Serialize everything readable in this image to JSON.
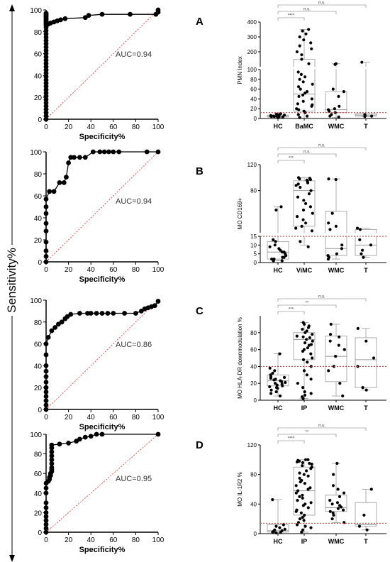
{
  "figure": {
    "y_axis_common_label": "Sensitivity%",
    "accent_colors": {
      "curve": "#000000",
      "reference": "#e05050",
      "cutoff": "#c0392b",
      "box": "#999999"
    }
  },
  "chart_data": [
    {
      "panel": "A",
      "type": "line",
      "title": "",
      "xlabel": "Specificity%",
      "ylabel": "",
      "xlim": [
        0,
        100
      ],
      "ylim": [
        0,
        100
      ],
      "xticks": [
        0,
        20,
        40,
        60,
        80,
        100
      ],
      "yticks": [
        0,
        20,
        40,
        60,
        80,
        100
      ],
      "annotation": "AUC=0.94",
      "diagonal_reference": true,
      "series": [
        {
          "x": [
            0,
            0,
            0,
            0,
            0,
            0,
            0,
            0,
            0,
            0,
            0,
            0,
            0,
            0,
            0,
            0,
            0,
            0,
            0,
            0,
            0,
            0,
            0,
            0,
            0,
            0,
            0,
            0,
            0,
            0,
            0,
            0,
            0,
            0,
            0,
            0,
            0,
            0,
            0,
            0,
            0,
            2,
            4,
            7,
            10,
            13,
            17,
            35,
            38,
            50,
            75,
            98,
            100,
            100
          ],
          "y": [
            0,
            3,
            6,
            9,
            12,
            15,
            18,
            21,
            24,
            27,
            30,
            33,
            36,
            39,
            42,
            45,
            48,
            51,
            54,
            57,
            60,
            63,
            66,
            69,
            72,
            75,
            78,
            81,
            84,
            86,
            87,
            88,
            89,
            90,
            91,
            92,
            93,
            94,
            95,
            96,
            97,
            87,
            88,
            89,
            90,
            91,
            92,
            93,
            95,
            96,
            96,
            96,
            98,
            100
          ]
        }
      ]
    },
    {
      "panel": "B",
      "type": "line",
      "title": "",
      "xlabel": "Specificity%",
      "ylabel": "",
      "xlim": [
        0,
        100
      ],
      "ylim": [
        0,
        100
      ],
      "xticks": [
        0,
        20,
        40,
        60,
        80,
        100
      ],
      "yticks": [
        0,
        20,
        40,
        60,
        80,
        100
      ],
      "annotation": "AUC=0.94",
      "diagonal_reference": true,
      "series": [
        {
          "x": [
            0,
            0,
            0,
            0,
            0,
            0,
            0,
            0,
            0,
            3,
            7,
            12,
            16,
            18,
            20,
            22,
            25,
            30,
            35,
            42,
            48,
            52,
            56,
            60,
            65,
            90,
            100
          ],
          "y": [
            0,
            5,
            10,
            18,
            28,
            35,
            44,
            50,
            57,
            64,
            64,
            72,
            72,
            77,
            90,
            95,
            95,
            95,
            95,
            100,
            100,
            100,
            100,
            100,
            100,
            100,
            100
          ]
        }
      ]
    },
    {
      "panel": "C",
      "type": "line",
      "title": "",
      "xlabel": "Specificity%",
      "ylabel": "",
      "xlim": [
        0,
        100
      ],
      "ylim": [
        0,
        100
      ],
      "xticks": [
        0,
        20,
        40,
        60,
        80,
        100
      ],
      "yticks": [
        0,
        20,
        40,
        60,
        80,
        100
      ],
      "annotation": "AUC=0.86",
      "diagonal_reference": true,
      "series": [
        {
          "x": [
            0,
            0,
            0,
            0,
            0,
            0,
            0,
            0,
            0,
            0,
            0,
            0,
            2,
            5,
            8,
            11,
            14,
            17,
            19,
            22,
            30,
            37,
            40,
            45,
            50,
            55,
            60,
            70,
            80,
            85,
            88,
            91,
            94,
            97,
            100
          ],
          "y": [
            0,
            4,
            8,
            12,
            16,
            20,
            25,
            30,
            35,
            40,
            50,
            60,
            66,
            72,
            75,
            78,
            80,
            83,
            85,
            87,
            88,
            88,
            88,
            88,
            88,
            88,
            88,
            88,
            88,
            90,
            92,
            93,
            94,
            95,
            99
          ]
        }
      ]
    },
    {
      "panel": "D",
      "type": "line",
      "title": "",
      "xlabel": "Specificity%",
      "ylabel": "",
      "xlim": [
        0,
        100
      ],
      "ylim": [
        0,
        100
      ],
      "xticks": [
        0,
        20,
        40,
        60,
        80,
        100
      ],
      "yticks": [
        0,
        20,
        40,
        60,
        80,
        100
      ],
      "annotation": "AUC=0.95",
      "diagonal_reference": true,
      "series": [
        {
          "x": [
            0,
            0,
            0,
            0,
            0,
            0,
            0,
            0,
            0,
            0,
            0,
            2,
            3,
            3,
            4,
            4,
            5,
            5,
            5,
            5,
            5,
            5,
            5,
            5,
            5,
            12,
            20,
            27,
            30,
            35,
            40,
            45,
            50,
            100
          ],
          "y": [
            0,
            4,
            8,
            12,
            16,
            20,
            25,
            30,
            40,
            45,
            50,
            52,
            54,
            56,
            58,
            60,
            62,
            64,
            66,
            70,
            74,
            78,
            82,
            86,
            89,
            90,
            91,
            93,
            95,
            97,
            98,
            100,
            100,
            100
          ]
        }
      ]
    },
    {
      "panel": "A",
      "type": "scatter",
      "title": "",
      "ylabel": "PMN Index",
      "categories": [
        "HC",
        "BaMC",
        "WMC",
        "T"
      ],
      "axis_break": true,
      "lower_ylim": [
        0,
        100
      ],
      "upper_ylim": [
        100,
        400
      ],
      "lower_ticks": [
        0,
        20,
        40,
        60,
        80,
        100
      ],
      "upper_ticks": [
        100,
        200,
        300,
        400
      ],
      "cutoff": 12,
      "significance": [
        {
          "from": 0,
          "to": 1,
          "label": "****"
        },
        {
          "from": 0,
          "to": 2,
          "label": "n.s."
        },
        {
          "from": 0,
          "to": 3,
          "label": "n.s."
        }
      ],
      "boxes": [
        {
          "min": 1,
          "q1": 3,
          "median": 5,
          "q3": 7,
          "max": 10
        },
        {
          "min": 1,
          "q1": 15,
          "median": 50,
          "q3": 150,
          "max": 350
        },
        {
          "min": 2,
          "q1": 12,
          "median": 18,
          "q3": 55,
          "max": 120
        },
        {
          "min": 4,
          "q1": 5,
          "median": 7,
          "q3": 10,
          "max": 130
        }
      ],
      "points": [
        [
          2,
          3,
          4,
          5,
          5,
          6,
          6,
          7,
          8,
          9,
          4,
          3,
          10,
          5,
          6
        ],
        [
          2,
          5,
          8,
          12,
          15,
          18,
          20,
          25,
          28,
          30,
          35,
          40,
          45,
          48,
          52,
          55,
          60,
          65,
          70,
          75,
          80,
          85,
          90,
          95,
          120,
          150,
          180,
          200,
          220,
          240,
          260,
          280,
          300,
          320,
          340,
          350
        ],
        [
          3,
          5,
          8,
          12,
          15,
          18,
          20,
          25,
          45,
          55,
          60,
          115,
          120
        ],
        [
          4,
          5,
          6,
          8,
          130
        ]
      ]
    },
    {
      "panel": "B",
      "type": "scatter",
      "title": "",
      "ylabel": "MO CD169+",
      "categories": [
        "HC",
        "ViMC",
        "WMC",
        "T"
      ],
      "axis_break": true,
      "lower_ylim": [
        0,
        15
      ],
      "upper_ylim": [
        15,
        120
      ],
      "lower_ticks": [
        0,
        5,
        10,
        15
      ],
      "upper_ticks": [
        40,
        80,
        120
      ],
      "cutoff": 15,
      "significance": [
        {
          "from": 0,
          "to": 1,
          "label": "***"
        },
        {
          "from": 0,
          "to": 2,
          "label": "n.s."
        },
        {
          "from": 0,
          "to": 3,
          "label": "n.s."
        }
      ],
      "boxes": [
        {
          "min": 1,
          "q1": 2,
          "median": 6,
          "q3": 12,
          "max": 55
        },
        {
          "min": 10,
          "q1": 25,
          "median": 80,
          "q3": 95,
          "max": 100
        },
        {
          "min": 2,
          "q1": 4,
          "median": 8,
          "q3": 48,
          "max": 98
        },
        {
          "min": 3,
          "q1": 4,
          "median": 10,
          "q3": 20,
          "max": 22
        }
      ],
      "points": [
        [
          1,
          1,
          2,
          2,
          3,
          3,
          4,
          5,
          6,
          6,
          7,
          8,
          9,
          10,
          12,
          13,
          50,
          55
        ],
        [
          9,
          12,
          18,
          22,
          25,
          30,
          35,
          40,
          45,
          50,
          55,
          60,
          65,
          70,
          75,
          80,
          85,
          88,
          90,
          92,
          95,
          96,
          97,
          98,
          99,
          100
        ],
        [
          2,
          3,
          4,
          5,
          8,
          10,
          20,
          25,
          30,
          45,
          97,
          98
        ],
        [
          3,
          5,
          7,
          10,
          13,
          20,
          22
        ]
      ]
    },
    {
      "panel": "C",
      "type": "scatter",
      "title": "",
      "ylabel": "MO HLA-DR downmodulation %",
      "categories": [
        "HC",
        "IP",
        "WMC",
        "T"
      ],
      "axis_break": false,
      "ylim": [
        0,
        100
      ],
      "yticks": [
        0,
        20,
        40,
        60,
        80
      ],
      "cutoff": 40,
      "significance": [
        {
          "from": 0,
          "to": 1,
          "label": "***"
        },
        {
          "from": 0,
          "to": 2,
          "label": "**"
        },
        {
          "from": 0,
          "to": 3,
          "label": "n.s."
        }
      ],
      "boxes": [
        {
          "min": 5,
          "q1": 17,
          "median": 23,
          "q3": 30,
          "max": 55
        },
        {
          "min": 2,
          "q1": 48,
          "median": 72,
          "q3": 80,
          "max": 92
        },
        {
          "min": 5,
          "q1": 22,
          "median": 52,
          "q3": 76,
          "max": 90
        },
        {
          "min": 12,
          "q1": 15,
          "median": 48,
          "q3": 74,
          "max": 85
        }
      ],
      "points": [
        [
          5,
          8,
          10,
          12,
          14,
          15,
          16,
          17,
          18,
          19,
          20,
          21,
          22,
          23,
          24,
          25,
          26,
          27,
          28,
          30,
          32,
          35,
          38,
          55
        ],
        [
          2,
          4,
          6,
          8,
          10,
          15,
          20,
          25,
          30,
          35,
          40,
          45,
          48,
          50,
          55,
          58,
          60,
          62,
          65,
          66,
          68,
          70,
          72,
          74,
          75,
          76,
          78,
          80,
          82,
          84,
          86,
          88,
          90,
          92
        ],
        [
          5,
          20,
          35,
          40,
          52,
          60,
          65,
          70,
          75,
          78,
          90
        ],
        [
          12,
          15,
          40,
          50,
          70,
          85
        ]
      ]
    },
    {
      "panel": "D",
      "type": "scatter",
      "title": "",
      "ylabel": "MO IL-1R2 %",
      "categories": [
        "HC",
        "IP",
        "WMC",
        "T"
      ],
      "axis_break": false,
      "ylim": [
        0,
        120
      ],
      "yticks": [
        0,
        40,
        80,
        120
      ],
      "cutoff": 14,
      "significance": [
        {
          "from": 0,
          "to": 1,
          "label": "****"
        },
        {
          "from": 0,
          "to": 2,
          "label": "**"
        },
        {
          "from": 0,
          "to": 3,
          "label": "n.s."
        }
      ],
      "boxes": [
        {
          "min": 1,
          "q1": 2,
          "median": 4,
          "q3": 12,
          "max": 46
        },
        {
          "min": 2,
          "q1": 25,
          "median": 58,
          "q3": 90,
          "max": 100
        },
        {
          "min": 15,
          "q1": 30,
          "median": 35,
          "q3": 52,
          "max": 95
        },
        {
          "min": 5,
          "q1": 10,
          "median": 12,
          "q3": 42,
          "max": 60
        }
      ],
      "points": [
        [
          1,
          2,
          2,
          3,
          4,
          5,
          6,
          8,
          10,
          12,
          46
        ],
        [
          2,
          5,
          8,
          10,
          12,
          15,
          18,
          20,
          22,
          25,
          28,
          30,
          32,
          35,
          38,
          40,
          42,
          45,
          48,
          50,
          52,
          55,
          58,
          60,
          62,
          65,
          68,
          70,
          72,
          75,
          78,
          80,
          82,
          85,
          88,
          90,
          92,
          94,
          95,
          96,
          97,
          98,
          99,
          100,
          100
        ],
        [
          15,
          20,
          25,
          28,
          30,
          32,
          34,
          36,
          38,
          40,
          42,
          45,
          50,
          55,
          60,
          65,
          80,
          95
        ],
        [
          5,
          10,
          25,
          60
        ]
      ]
    }
  ]
}
